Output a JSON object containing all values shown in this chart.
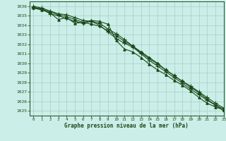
{
  "title": "Graphe pression niveau de la mer (hPa)",
  "bg_color": "#cceee8",
  "grid_color": "#aad4cc",
  "line_color": "#1a4a1a",
  "xlim": [
    -0.5,
    23
  ],
  "ylim": [
    1024.5,
    1036.5
  ],
  "yticks": [
    1025,
    1026,
    1027,
    1028,
    1029,
    1030,
    1031,
    1032,
    1033,
    1034,
    1035,
    1036
  ],
  "xticks": [
    0,
    1,
    2,
    3,
    4,
    5,
    6,
    7,
    8,
    9,
    10,
    11,
    12,
    13,
    14,
    15,
    16,
    17,
    18,
    19,
    20,
    21,
    22,
    23
  ],
  "series": [
    [
      1035.8,
      1035.6,
      1035.3,
      1034.6,
      1034.8,
      1034.2,
      1034.3,
      1034.5,
      1034.4,
      1034.1,
      1032.4,
      1031.5,
      1031.2,
      1030.6,
      1029.9,
      1029.3,
      1028.8,
      1028.2,
      1027.7,
      1027.1,
      1026.4,
      1025.8,
      1025.4,
      1025.1
    ],
    [
      1036.0,
      1035.8,
      1035.5,
      1035.2,
      1035.1,
      1034.8,
      1034.5,
      1034.4,
      1034.2,
      1033.6,
      1033.1,
      1032.5,
      1031.8,
      1031.1,
      1030.5,
      1029.9,
      1029.3,
      1028.7,
      1028.1,
      1027.6,
      1027.0,
      1026.4,
      1025.8,
      1025.3
    ],
    [
      1035.8,
      1035.7,
      1035.2,
      1035.0,
      1034.7,
      1034.4,
      1034.2,
      1034.4,
      1034.0,
      1033.3,
      1032.6,
      1032.1,
      1031.7,
      1031.0,
      1030.3,
      1029.7,
      1029.1,
      1028.5,
      1027.9,
      1027.3,
      1026.7,
      1026.1,
      1025.6,
      1025.2
    ],
    [
      1035.9,
      1035.7,
      1035.4,
      1035.1,
      1034.9,
      1034.6,
      1034.3,
      1034.1,
      1033.9,
      1033.4,
      1032.9,
      1032.3,
      1031.8,
      1031.2,
      1030.6,
      1030.0,
      1029.3,
      1028.7,
      1028.1,
      1027.5,
      1026.9,
      1026.2,
      1025.6,
      1025.0
    ]
  ],
  "markers": [
    "^",
    "+",
    "+",
    "D"
  ],
  "markersizes": [
    2.5,
    4,
    4,
    2
  ],
  "linewidths": [
    0.8,
    0.8,
    0.8,
    0.8
  ]
}
